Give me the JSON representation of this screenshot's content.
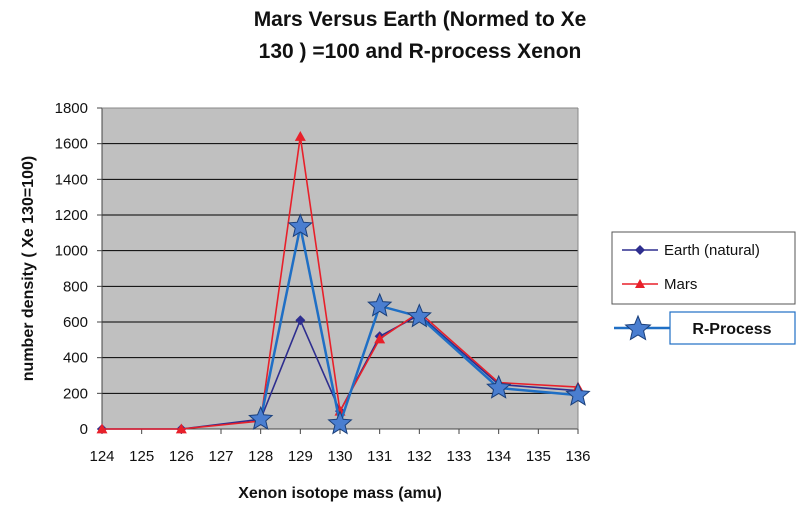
{
  "chart_data": {
    "type": "line",
    "title_line1": "Mars Versus Earth (Normed to Xe",
    "title_line2": "130 ) =100 and R-process Xenon",
    "xlabel": "Xenon isotope mass (amu)",
    "ylabel": "number density  ( Xe 130=100)",
    "xlim": [
      124,
      136
    ],
    "ylim": [
      0,
      1800
    ],
    "x_ticks": [
      124,
      125,
      126,
      127,
      128,
      129,
      130,
      131,
      132,
      133,
      134,
      135,
      136
    ],
    "y_ticks": [
      0,
      200,
      400,
      600,
      800,
      1000,
      1200,
      1400,
      1600,
      1800
    ],
    "grid": "horizontal",
    "plot_background": "#c0c0c0",
    "legend_placement": "right",
    "series": [
      {
        "name": "Earth (natural)",
        "color": "#2e2e8f",
        "marker": "diamond",
        "x": [
          124,
          126,
          128,
          129,
          130,
          131,
          132,
          134,
          136
        ],
        "y": [
          0,
          0,
          55,
          610,
          100,
          520,
          640,
          250,
          215
        ]
      },
      {
        "name": "Mars",
        "color": "#e8202a",
        "marker": "triangle",
        "x": [
          124,
          126,
          128,
          129,
          130,
          131,
          132,
          134,
          136
        ],
        "y": [
          0,
          0,
          45,
          1640,
          100,
          505,
          655,
          260,
          235
        ]
      },
      {
        "name": "R-Process",
        "color": "#1f6fc5",
        "marker": "star",
        "x": [
          128,
          129,
          130,
          131,
          132,
          134,
          136
        ],
        "y": [
          55,
          1135,
          30,
          690,
          630,
          230,
          190
        ]
      }
    ]
  }
}
